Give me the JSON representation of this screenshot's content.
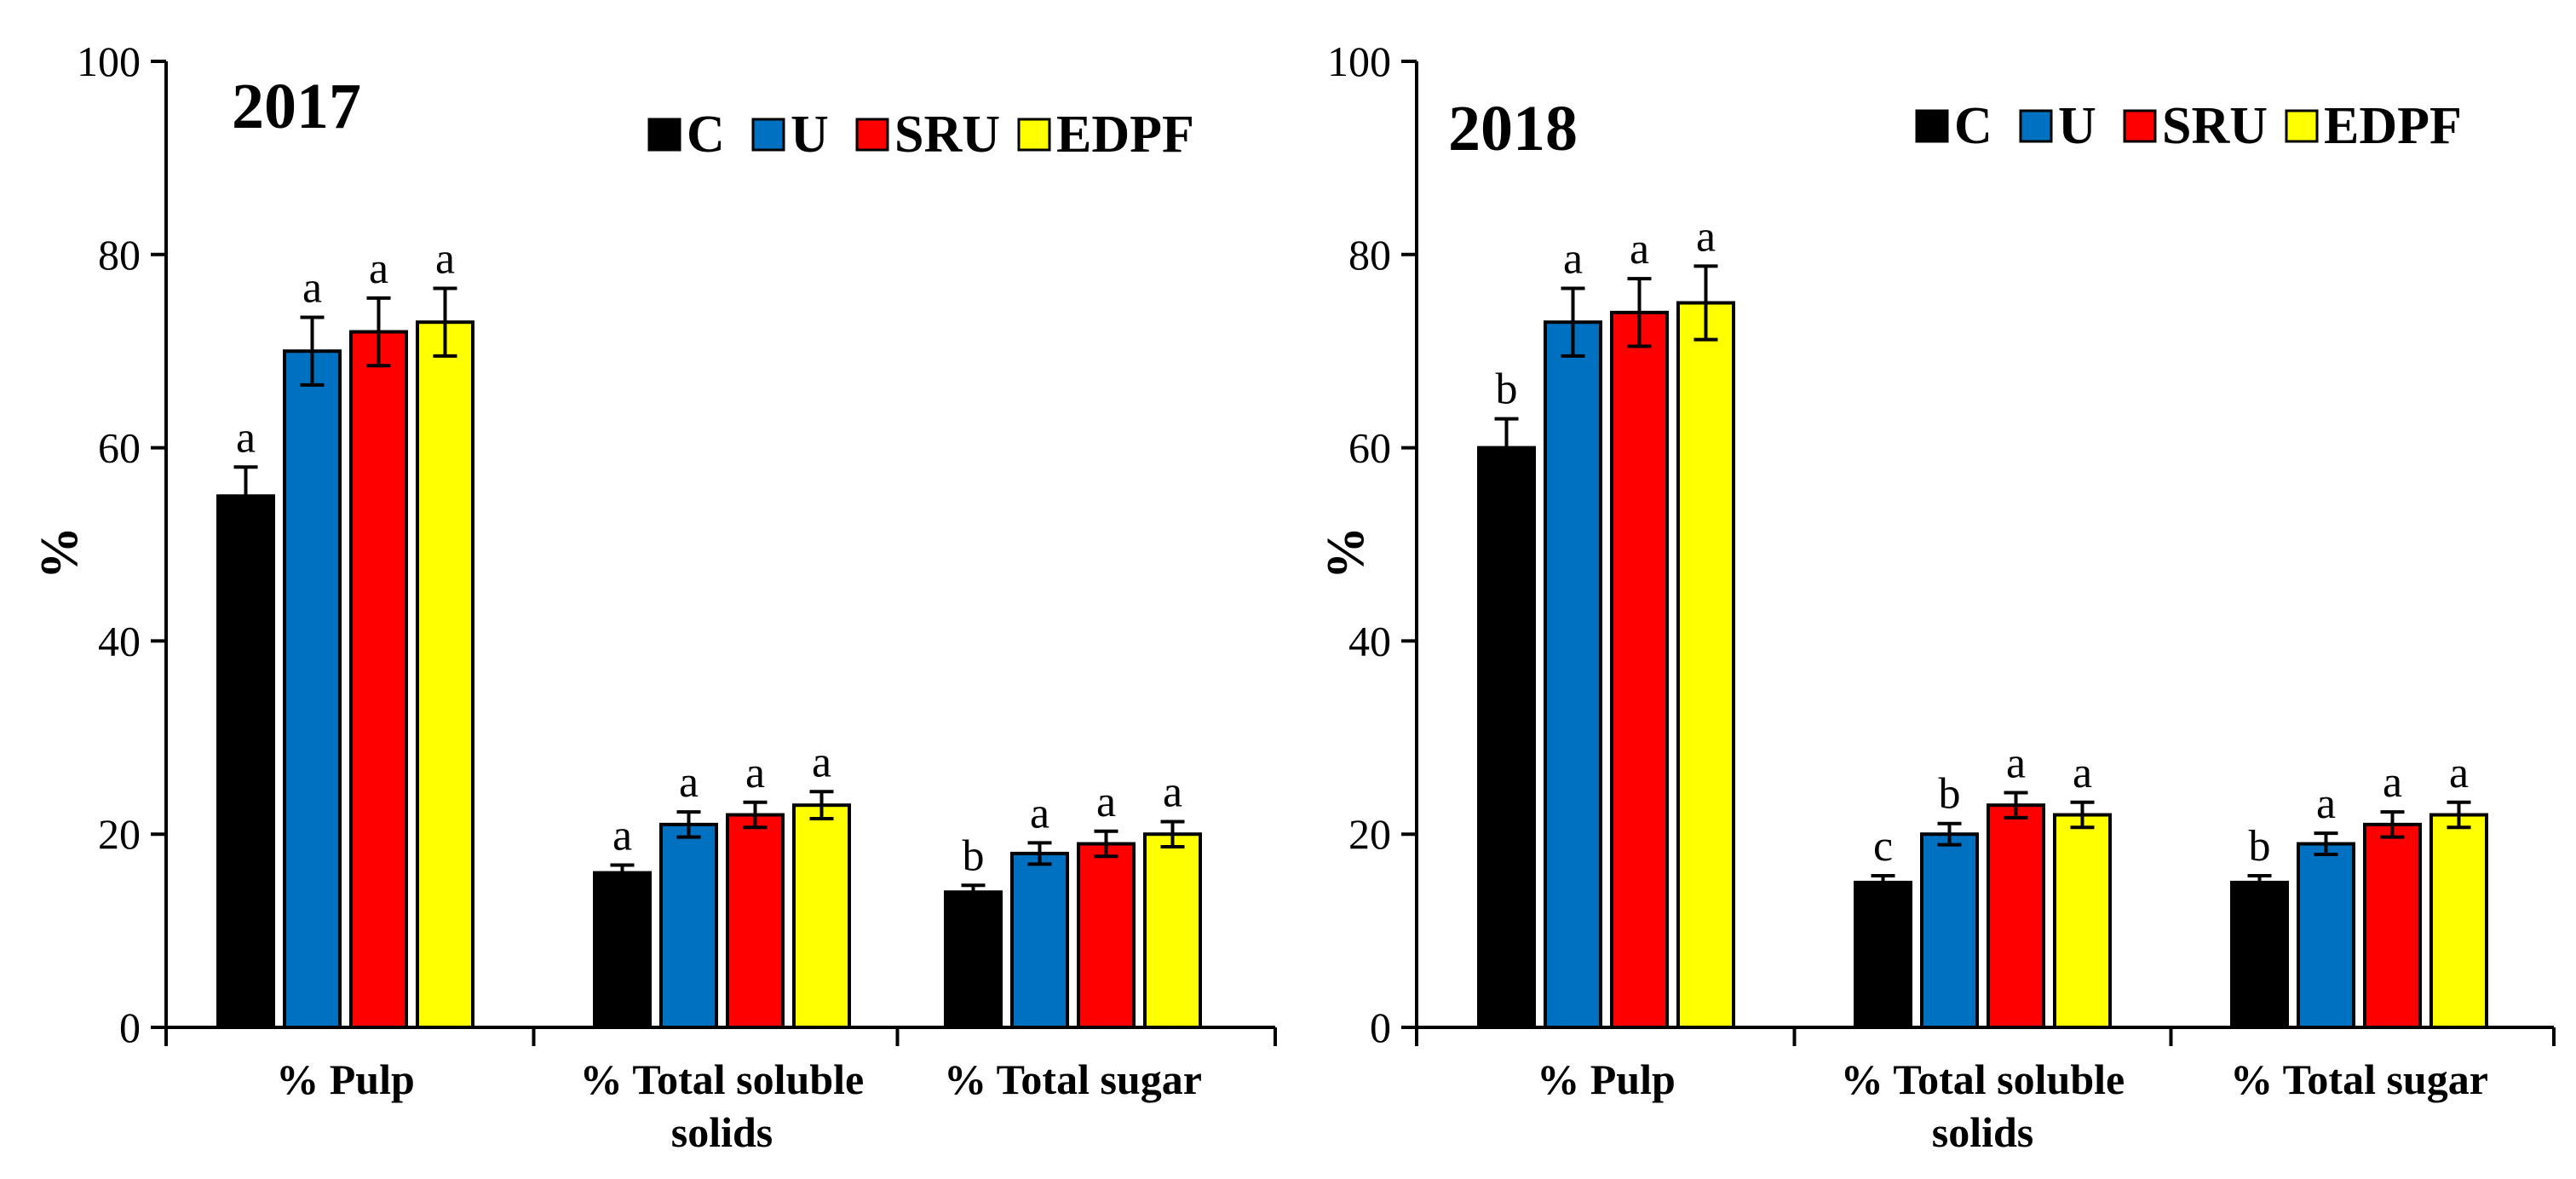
{
  "chart_data": [
    {
      "type": "bar",
      "title": "2017",
      "ylabel": "%",
      "xlabel": "",
      "ylim": [
        0,
        100
      ],
      "yticks": [
        0,
        20,
        40,
        60,
        80,
        100
      ],
      "legend_position": "top-right",
      "categories": [
        {
          "lines": [
            "% Pulp"
          ]
        },
        {
          "lines": [
            "% Total soluble",
            "solids"
          ]
        },
        {
          "lines": [
            "% Total sugar"
          ]
        }
      ],
      "series": [
        {
          "name": "C",
          "color": "#000000",
          "values": [
            55,
            16,
            14
          ],
          "errors": [
            3,
            0.8,
            0.7
          ],
          "letters": [
            "a",
            "a",
            "b"
          ]
        },
        {
          "name": "U",
          "color": "#0070C0",
          "values": [
            70,
            21,
            18
          ],
          "errors": [
            3.5,
            1.3,
            1.1
          ],
          "letters": [
            "a",
            "a",
            "a"
          ]
        },
        {
          "name": "SRU",
          "color": "#FF0000",
          "values": [
            72,
            22,
            19
          ],
          "errors": [
            3.5,
            1.3,
            1.3
          ],
          "letters": [
            "a",
            "a",
            "a"
          ]
        },
        {
          "name": "EDPF",
          "color": "#FFFF00",
          "values": [
            73,
            23,
            20
          ],
          "errors": [
            3.5,
            1.4,
            1.3
          ],
          "letters": [
            "a",
            "a",
            "a"
          ]
        }
      ]
    },
    {
      "type": "bar",
      "title": "2018",
      "ylabel": "%",
      "xlabel": "",
      "ylim": [
        0,
        100
      ],
      "yticks": [
        0,
        20,
        40,
        60,
        80,
        100
      ],
      "legend_position": "top-right",
      "categories": [
        {
          "lines": [
            "% Pulp"
          ]
        },
        {
          "lines": [
            "% Total soluble",
            "solids"
          ]
        },
        {
          "lines": [
            "% Total sugar"
          ]
        }
      ],
      "series": [
        {
          "name": "C",
          "color": "#000000",
          "values": [
            60,
            15,
            15
          ],
          "errors": [
            3,
            0.7,
            0.7
          ],
          "letters": [
            "b",
            "c",
            "b"
          ]
        },
        {
          "name": "U",
          "color": "#0070C0",
          "values": [
            73,
            20,
            19
          ],
          "errors": [
            3.5,
            1.1,
            1.1
          ],
          "letters": [
            "a",
            "b",
            "a"
          ]
        },
        {
          "name": "SRU",
          "color": "#FF0000",
          "values": [
            74,
            23,
            21
          ],
          "errors": [
            3.5,
            1.3,
            1.3
          ],
          "letters": [
            "a",
            "a",
            "a"
          ]
        },
        {
          "name": "EDPF",
          "color": "#FFFF00",
          "values": [
            75,
            22,
            22
          ],
          "errors": [
            3.8,
            1.3,
            1.3
          ],
          "letters": [
            "a",
            "a",
            "a"
          ]
        }
      ]
    }
  ]
}
